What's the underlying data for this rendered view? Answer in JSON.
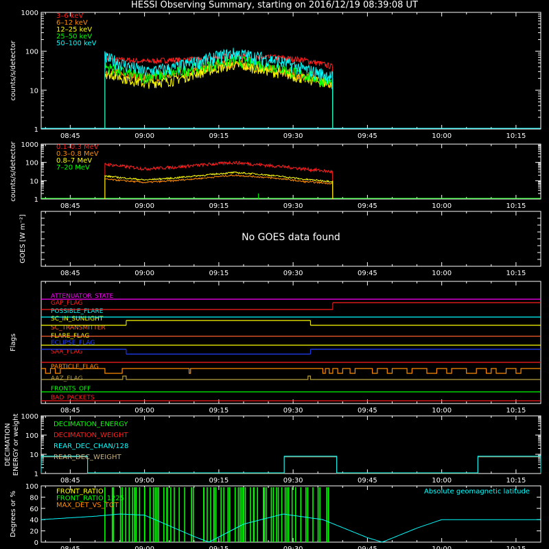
{
  "title": "HESSI Observing Summary, starting on 2016/12/19 08:39:08 UT",
  "time_axis": {
    "start": "08:39:08",
    "end": "10:20",
    "ticks": [
      "08:45",
      "09:00",
      "09:15",
      "09:30",
      "09:45",
      "10:00",
      "10:15"
    ]
  },
  "colors": {
    "red": "#ff2020",
    "orange": "#ff8c00",
    "yellow": "#ffff00",
    "green": "#00ff00",
    "cyan": "#00ffff",
    "magenta": "#ff00ff",
    "blue": "#2040ff",
    "white": "#ffffff",
    "olive": "#b8a040",
    "tan": "#c8b080",
    "salmon": "#ff6030"
  },
  "chart_data": [
    {
      "type": "line",
      "panel": "lightcurve-low",
      "ylabel": "counts/s/detector",
      "yscale": "log",
      "ylim": [
        1,
        1000
      ],
      "yticks": [
        "1",
        "10",
        "100",
        "1000"
      ],
      "data_window": [
        "08:52",
        "09:58"
      ],
      "series": [
        {
          "name": "3–6 keV",
          "color": "red",
          "values": [
            [
              52,
              60
            ],
            [
              56,
              60
            ],
            [
              60,
              55
            ],
            [
              66,
              60
            ],
            [
              72,
              62
            ],
            [
              78,
              80
            ],
            [
              82,
              65
            ],
            [
              86,
              70
            ],
            [
              92,
              60
            ],
            [
              98,
              40
            ]
          ]
        },
        {
          "name": "6–12 keV",
          "color": "orange",
          "values": [
            [
              52,
              30
            ],
            [
              56,
              25
            ],
            [
              60,
              20
            ],
            [
              66,
              25
            ],
            [
              72,
              35
            ],
            [
              78,
              50
            ],
            [
              82,
              40
            ],
            [
              86,
              35
            ],
            [
              92,
              22
            ],
            [
              98,
              15
            ]
          ]
        },
        {
          "name": "12–25 keV",
          "color": "yellow",
          "values": [
            [
              52,
              28
            ],
            [
              56,
              20
            ],
            [
              60,
              15
            ],
            [
              66,
              18
            ],
            [
              72,
              30
            ],
            [
              78,
              45
            ],
            [
              82,
              38
            ],
            [
              86,
              30
            ],
            [
              92,
              20
            ],
            [
              98,
              14
            ]
          ]
        },
        {
          "name": "25–50 keV",
          "color": "green",
          "values": [
            [
              52,
              40
            ],
            [
              56,
              28
            ],
            [
              60,
              22
            ],
            [
              66,
              28
            ],
            [
              72,
              42
            ],
            [
              78,
              60
            ],
            [
              82,
              50
            ],
            [
              86,
              40
            ],
            [
              92,
              25
            ],
            [
              98,
              15
            ]
          ]
        },
        {
          "name": "50–100 keV",
          "color": "cyan",
          "values": [
            [
              52,
              70
            ],
            [
              56,
              45
            ],
            [
              60,
              30
            ],
            [
              66,
              38
            ],
            [
              72,
              60
            ],
            [
              78,
              90
            ],
            [
              82,
              75
            ],
            [
              86,
              60
            ],
            [
              92,
              35
            ],
            [
              98,
              22
            ]
          ]
        }
      ]
    },
    {
      "type": "line",
      "panel": "lightcurve-high",
      "ylabel": "counts/s/detector",
      "yscale": "log",
      "ylim": [
        1,
        1000
      ],
      "yticks": [
        "1",
        "10",
        "100",
        "1000"
      ],
      "data_window": [
        "08:52",
        "09:58"
      ],
      "series": [
        {
          "name": "0.1–0.3 MeV",
          "color": "red",
          "values": [
            [
              52,
              80
            ],
            [
              56,
              60
            ],
            [
              60,
              45
            ],
            [
              66,
              55
            ],
            [
              72,
              75
            ],
            [
              78,
              100
            ],
            [
              82,
              80
            ],
            [
              86,
              65
            ],
            [
              92,
              45
            ],
            [
              98,
              30
            ]
          ]
        },
        {
          "name": "0.3–0.8 MeV",
          "color": "orange",
          "values": [
            [
              52,
              12
            ],
            [
              56,
              10
            ],
            [
              60,
              8
            ],
            [
              66,
              10
            ],
            [
              72,
              14
            ],
            [
              78,
              20
            ],
            [
              82,
              17
            ],
            [
              86,
              14
            ],
            [
              92,
              9
            ],
            [
              98,
              7
            ]
          ]
        },
        {
          "name": "0.8–7 MeV",
          "color": "yellow",
          "values": [
            [
              52,
              18
            ],
            [
              56,
              14
            ],
            [
              60,
              11
            ],
            [
              66,
              14
            ],
            [
              72,
              20
            ],
            [
              78,
              28
            ],
            [
              82,
              24
            ],
            [
              86,
              19
            ],
            [
              92,
              12
            ],
            [
              98,
              9
            ]
          ]
        },
        {
          "name": "7–20 MeV",
          "color": "green",
          "values": [
            [
              52,
              1
            ],
            [
              98,
              1
            ]
          ]
        }
      ]
    },
    {
      "type": "line",
      "panel": "goes",
      "ylabel": "GOES [W m⁻²]",
      "annotation": "No GOES data found",
      "series": []
    },
    {
      "type": "line",
      "panel": "flags",
      "ylabel": "Flags",
      "series": [
        {
          "name": "ATTENUATOR_STATE",
          "color": "magenta"
        },
        {
          "name": "GAP_FLAG",
          "color": "red"
        },
        {
          "name": "POSSIBLE_FLARE",
          "color": "cyan"
        },
        {
          "name": "SC_IN_SUNLIGHT",
          "color": "yellow"
        },
        {
          "name": "SC_TRANSMITTER",
          "color": "salmon"
        },
        {
          "name": "FLARE_FLAG",
          "color": "yellow"
        },
        {
          "name": "ECLIPSE_FLAG",
          "color": "blue"
        },
        {
          "name": "SAA_FLAG",
          "color": "red"
        },
        {
          "name": "PARTICLE_FLAG",
          "color": "orange"
        },
        {
          "name": "AAZ_FLAG",
          "color": "olive"
        },
        {
          "name": "FRONTS_OFF",
          "color": "green"
        },
        {
          "name": "BAD_PACKETS",
          "color": "red"
        }
      ]
    },
    {
      "type": "line",
      "panel": "decimation",
      "ylabel": "DECIMATION ENERGY or weight",
      "yscale": "log",
      "ylim": [
        1,
        1000
      ],
      "yticks": [
        "1",
        "10",
        "100",
        "1000"
      ],
      "series": [
        {
          "name": "DECIMATION_ENERGY",
          "color": "green"
        },
        {
          "name": "DECIMATION_WEIGHT",
          "color": "red"
        },
        {
          "name": "REAR_DEC_CHAN/128",
          "color": "cyan"
        },
        {
          "name": "REAR_DEC_WEIGHT",
          "color": "tan"
        }
      ]
    },
    {
      "type": "line",
      "panel": "ratios",
      "ylabel": "Degrees or %",
      "ylim": [
        0,
        100
      ],
      "yticks": [
        "0",
        "20",
        "40",
        "60",
        "80",
        "100"
      ],
      "series": [
        {
          "name": "FRONT_RATIO",
          "color": "yellow"
        },
        {
          "name": "FRONT_RATIO_1225",
          "color": "green"
        },
        {
          "name": "MAX_DET_VS_TOT",
          "color": "orange"
        },
        {
          "name": "Absolute geomagnetic latitude",
          "color": "cyan",
          "values": [
            [
              39,
              40
            ],
            [
              50,
              46
            ],
            [
              55,
              50
            ],
            [
              60,
              48
            ],
            [
              70,
              10
            ],
            [
              73,
              0
            ],
            [
              80,
              32
            ],
            [
              88,
              50
            ],
            [
              96,
              40
            ],
            [
              105,
              8
            ],
            [
              108,
              0
            ],
            [
              115,
              25
            ],
            [
              120,
              40
            ]
          ]
        }
      ]
    }
  ]
}
